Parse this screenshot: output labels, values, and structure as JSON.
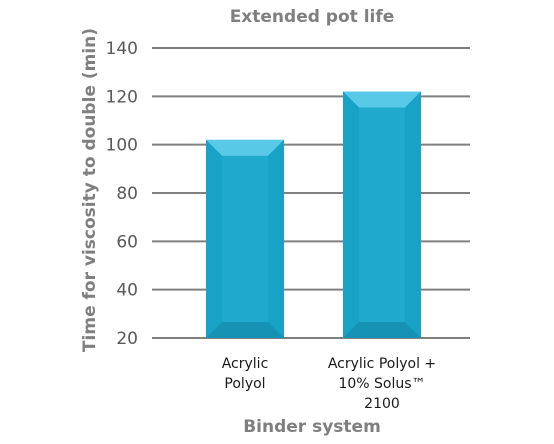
{
  "chart_data": {
    "type": "bar",
    "title": "Extended pot life",
    "xlabel": "Binder system",
    "ylabel": "Time for viscosity to double (min)",
    "categories": [
      [
        "Acrylic",
        "Polyol"
      ],
      [
        "Acrylic Polyol +",
        "10% Solus™",
        "2100"
      ]
    ],
    "values": [
      102,
      122
    ],
    "ylim": [
      20,
      140
    ],
    "yticks": [
      20,
      40,
      60,
      80,
      100,
      120,
      140
    ],
    "grid": true,
    "colors": {
      "bar_face": "#1fa9cc",
      "bar_top": "#58c9e6",
      "bar_side": "#17a2c6",
      "bar_bottom": "#0f7fa3",
      "grid": "#7f7f7f",
      "axis_text": "#7f7f7f"
    }
  }
}
